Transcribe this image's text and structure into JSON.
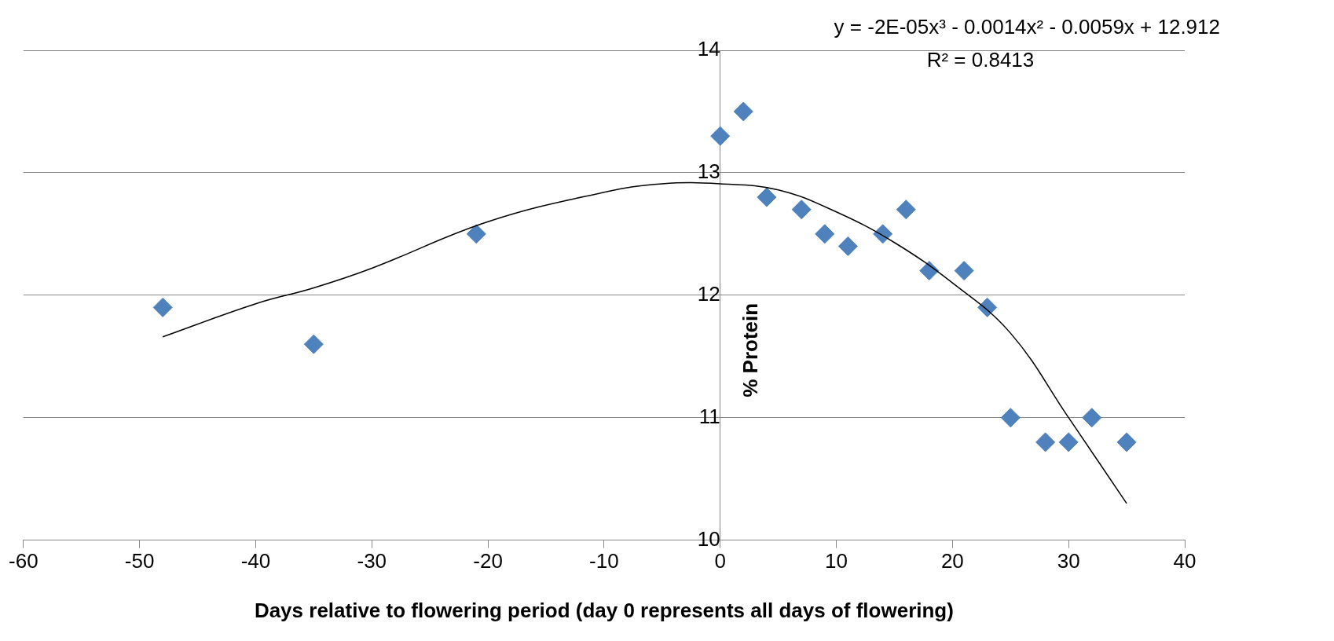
{
  "chart_data": {
    "type": "scatter",
    "xlabel": "Days relative to flowering period (day 0 represents all days of flowering)",
    "ylabel": "% Protein",
    "annotations": [
      "y = -2E-05x³ - 0.0014x² - 0.0059x + 12.912",
      "R² = 0.8413"
    ],
    "xlim": [
      -60,
      40
    ],
    "xticks": [
      -60,
      -50,
      -40,
      -30,
      -20,
      -10,
      0,
      10,
      20,
      30,
      40
    ],
    "ylim": [
      10,
      14
    ],
    "yticks": [
      10,
      11,
      12,
      13,
      14
    ],
    "grid": "y",
    "series": [
      {
        "marker": "diamond",
        "color": "#4f81bd",
        "x": [
          -48,
          -35,
          -21,
          0,
          2,
          4,
          7,
          9,
          11,
          14,
          16,
          18,
          21,
          23,
          25,
          28,
          30,
          32,
          35
        ],
        "values": [
          11.9,
          11.6,
          12.5,
          13.3,
          13.5,
          12.8,
          12.7,
          12.5,
          12.4,
          12.5,
          12.7,
          12.2,
          12.2,
          11.9,
          11.0,
          10.8,
          10.8,
          11.0,
          10.8
        ]
      },
      {
        "type": "line",
        "marker": "none",
        "color": "#000000",
        "x": [
          -48,
          -40,
          -35,
          -30,
          -20,
          -10,
          -5,
          0,
          5,
          10,
          15,
          20,
          25,
          30,
          35
        ],
        "values": [
          11.66,
          11.93,
          12.06,
          12.22,
          12.6,
          12.84,
          12.91,
          12.91,
          12.86,
          12.68,
          12.43,
          12.1,
          11.69,
          11.0,
          10.3
        ]
      }
    ]
  }
}
